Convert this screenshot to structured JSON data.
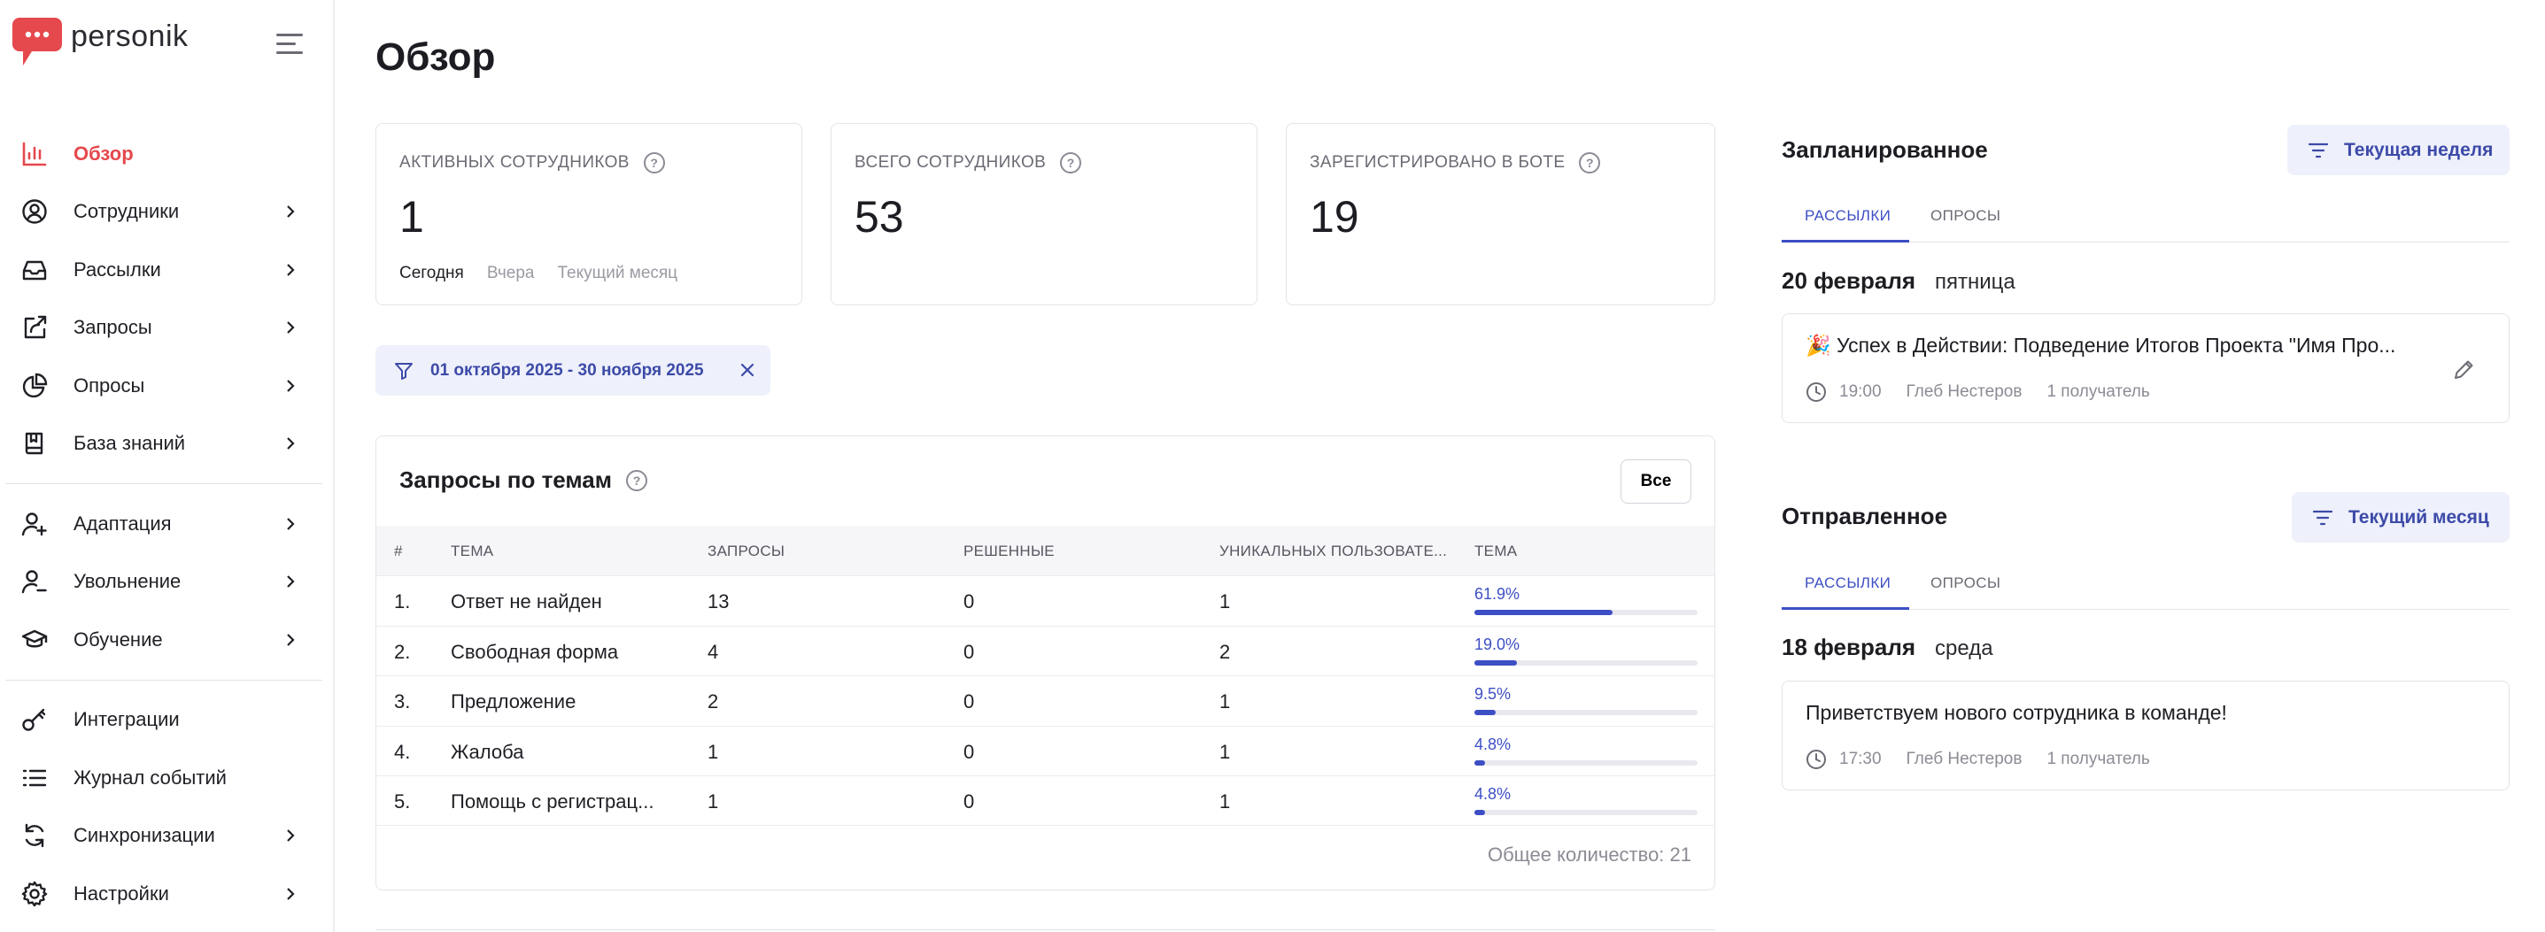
{
  "brand": {
    "name": "personik",
    "accent": "#e5484d",
    "primary": "#3d4fc4"
  },
  "sidebar": {
    "items": [
      {
        "label": "Обзор",
        "icon": "bar-chart-icon",
        "active": true
      },
      {
        "label": "Сотрудники",
        "icon": "user-circle-icon"
      },
      {
        "label": "Рассылки",
        "icon": "inbox-icon"
      },
      {
        "label": "Запросы",
        "icon": "share-request-icon"
      },
      {
        "label": "Опросы",
        "icon": "pie-chart-icon"
      },
      {
        "label": "База знаний",
        "icon": "book-icon"
      },
      {
        "label": "Адаптация",
        "icon": "user-add-icon"
      },
      {
        "label": "Увольнение",
        "icon": "user-remove-icon"
      },
      {
        "label": "Обучение",
        "icon": "graduation-cap-icon"
      },
      {
        "label": "Интеграции",
        "icon": "key-icon"
      },
      {
        "label": "Журнал событий",
        "icon": "list-icon"
      },
      {
        "label": "Синхронизации",
        "icon": "sync-icon"
      },
      {
        "label": "Настройки",
        "icon": "gear-icon"
      }
    ]
  },
  "main": {
    "title": "Обзор",
    "stats": [
      {
        "title": "АКТИВНЫХ СОТРУДНИКОВ",
        "value": "1",
        "tabs": [
          "Сегодня",
          "Вчера",
          "Текущий месяц"
        ]
      },
      {
        "title": "ВСЕГО СОТРУДНИКОВ",
        "value": "53"
      },
      {
        "title": "ЗАРЕГИСТРИРОВАНО В БОТЕ",
        "value": "19"
      }
    ],
    "date_filter": "01 октября 2025 - 30 ноября 2025",
    "topics": {
      "title": "Запросы по темам",
      "all_button": "Все",
      "columns": [
        "#",
        "ТЕМА",
        "ЗАПРОСЫ",
        "РЕШЕННЫЕ",
        "УНИКАЛЬНЫХ ПОЛЬЗОВАТЕ...",
        "ТЕМА"
      ],
      "rows": [
        {
          "n": "1.",
          "topic": "Ответ не найден",
          "requests": "13",
          "solved": "0",
          "unique": "1",
          "pct": "61.9%",
          "share": 0.619
        },
        {
          "n": "2.",
          "topic": "Свободная форма",
          "requests": "4",
          "solved": "0",
          "unique": "2",
          "pct": "19.0%",
          "share": 0.19
        },
        {
          "n": "3.",
          "topic": "Предложение",
          "requests": "2",
          "solved": "0",
          "unique": "1",
          "pct": "9.5%",
          "share": 0.095
        },
        {
          "n": "4.",
          "topic": "Жалоба",
          "requests": "1",
          "solved": "0",
          "unique": "1",
          "pct": "4.8%",
          "share": 0.048
        },
        {
          "n": "5.",
          "topic": "Помощь с регистрац...",
          "requests": "1",
          "solved": "0",
          "unique": "1",
          "pct": "4.8%",
          "share": 0.048
        }
      ],
      "total": "Общее количество: 21"
    }
  },
  "planned": {
    "title": "Запланированное",
    "filter": "Текущая неделя",
    "tabs": [
      "РАССЫЛКИ",
      "ОПРОСЫ"
    ],
    "date": "20 февраля",
    "weekday": "пятница",
    "event": {
      "title": "🎉 Успех в Действии: Подведение Итогов Проекта \"Имя Про...",
      "time": "19:00",
      "author": "Глеб Нестеров",
      "recipients": "1 получатель"
    }
  },
  "sent": {
    "title": "Отправленное",
    "filter": "Текущий месяц",
    "tabs": [
      "РАССЫЛКИ",
      "ОПРОСЫ"
    ],
    "date": "18 февраля",
    "weekday": "среда",
    "event": {
      "title": "Приветствуем нового сотрудника в команде!",
      "time": "17:30",
      "author": "Глеб Нестеров",
      "recipients": "1 получатель"
    }
  }
}
